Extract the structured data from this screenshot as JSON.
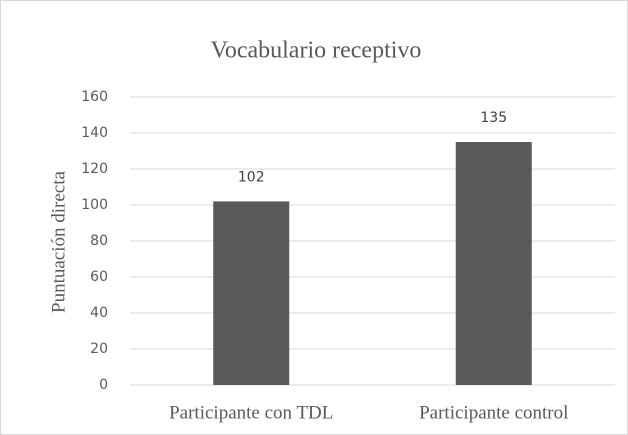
{
  "chart_data": {
    "type": "bar",
    "title": "Vocabulario receptivo",
    "y_label": "Puntuación directa",
    "categories": [
      "Participante con TDL",
      "Participante control"
    ],
    "values": [
      102,
      135
    ],
    "color": "#595959",
    "ylim": [
      0,
      160
    ],
    "yticks": [
      0,
      20,
      40,
      60,
      80,
      100,
      120,
      140,
      160
    ],
    "grid": true
  }
}
